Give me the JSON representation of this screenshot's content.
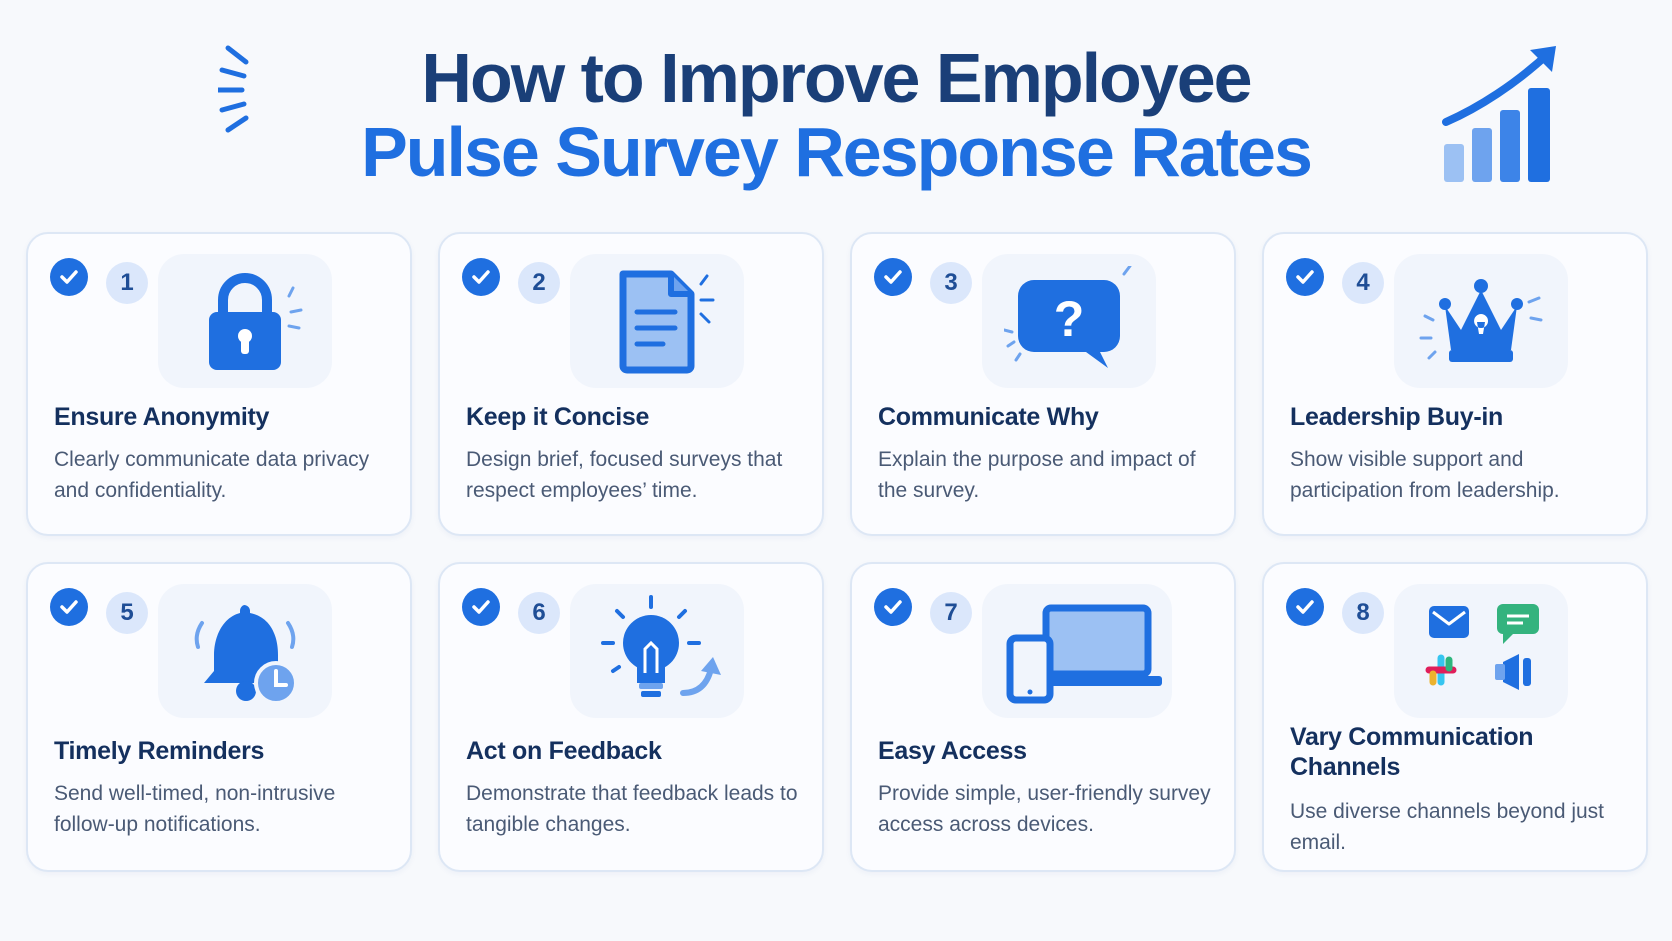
{
  "header": {
    "title_line1": "How to Improve Employee",
    "title_line2": "Pulse Survey Response Rates"
  },
  "colors": {
    "primary_blue": "#1f6fe0",
    "dark_navy": "#1a3f78",
    "light_blue": "#dbe7fb"
  },
  "cards": [
    {
      "number": "1",
      "title": "Ensure Anonymity",
      "description": "Clearly communicate data privacy and confidentiality.",
      "icon": "lock-icon",
      "checked": true
    },
    {
      "number": "2",
      "title": "Keep it Concise",
      "description": "Design brief, focused surveys that respect employees’ time.",
      "icon": "document-icon",
      "checked": true
    },
    {
      "number": "3",
      "title": "Communicate Why",
      "description": "Explain the purpose and impact of the survey.",
      "icon": "question-bubble-icon",
      "checked": true
    },
    {
      "number": "4",
      "title": "Leadership Buy-in",
      "description": "Show visible support and participation from leadership.",
      "icon": "crown-icon",
      "checked": true
    },
    {
      "number": "5",
      "title": "Timely Reminders",
      "description": "Send well-timed, non-intrusive follow-up notifications.",
      "icon": "bell-clock-icon",
      "checked": true
    },
    {
      "number": "6",
      "title": "Act on Feedback",
      "description": "Demonstrate that feedback leads to tangible changes.",
      "icon": "lightbulb-icon",
      "checked": true
    },
    {
      "number": "7",
      "title": "Easy Access",
      "description": "Provide simple, user-friendly survey access across devices.",
      "icon": "devices-icon",
      "checked": true
    },
    {
      "number": "8",
      "title": "Vary Communication Channels",
      "description": "Use diverse channels beyond just email.",
      "icon": "channels-icon",
      "checked": true
    }
  ]
}
